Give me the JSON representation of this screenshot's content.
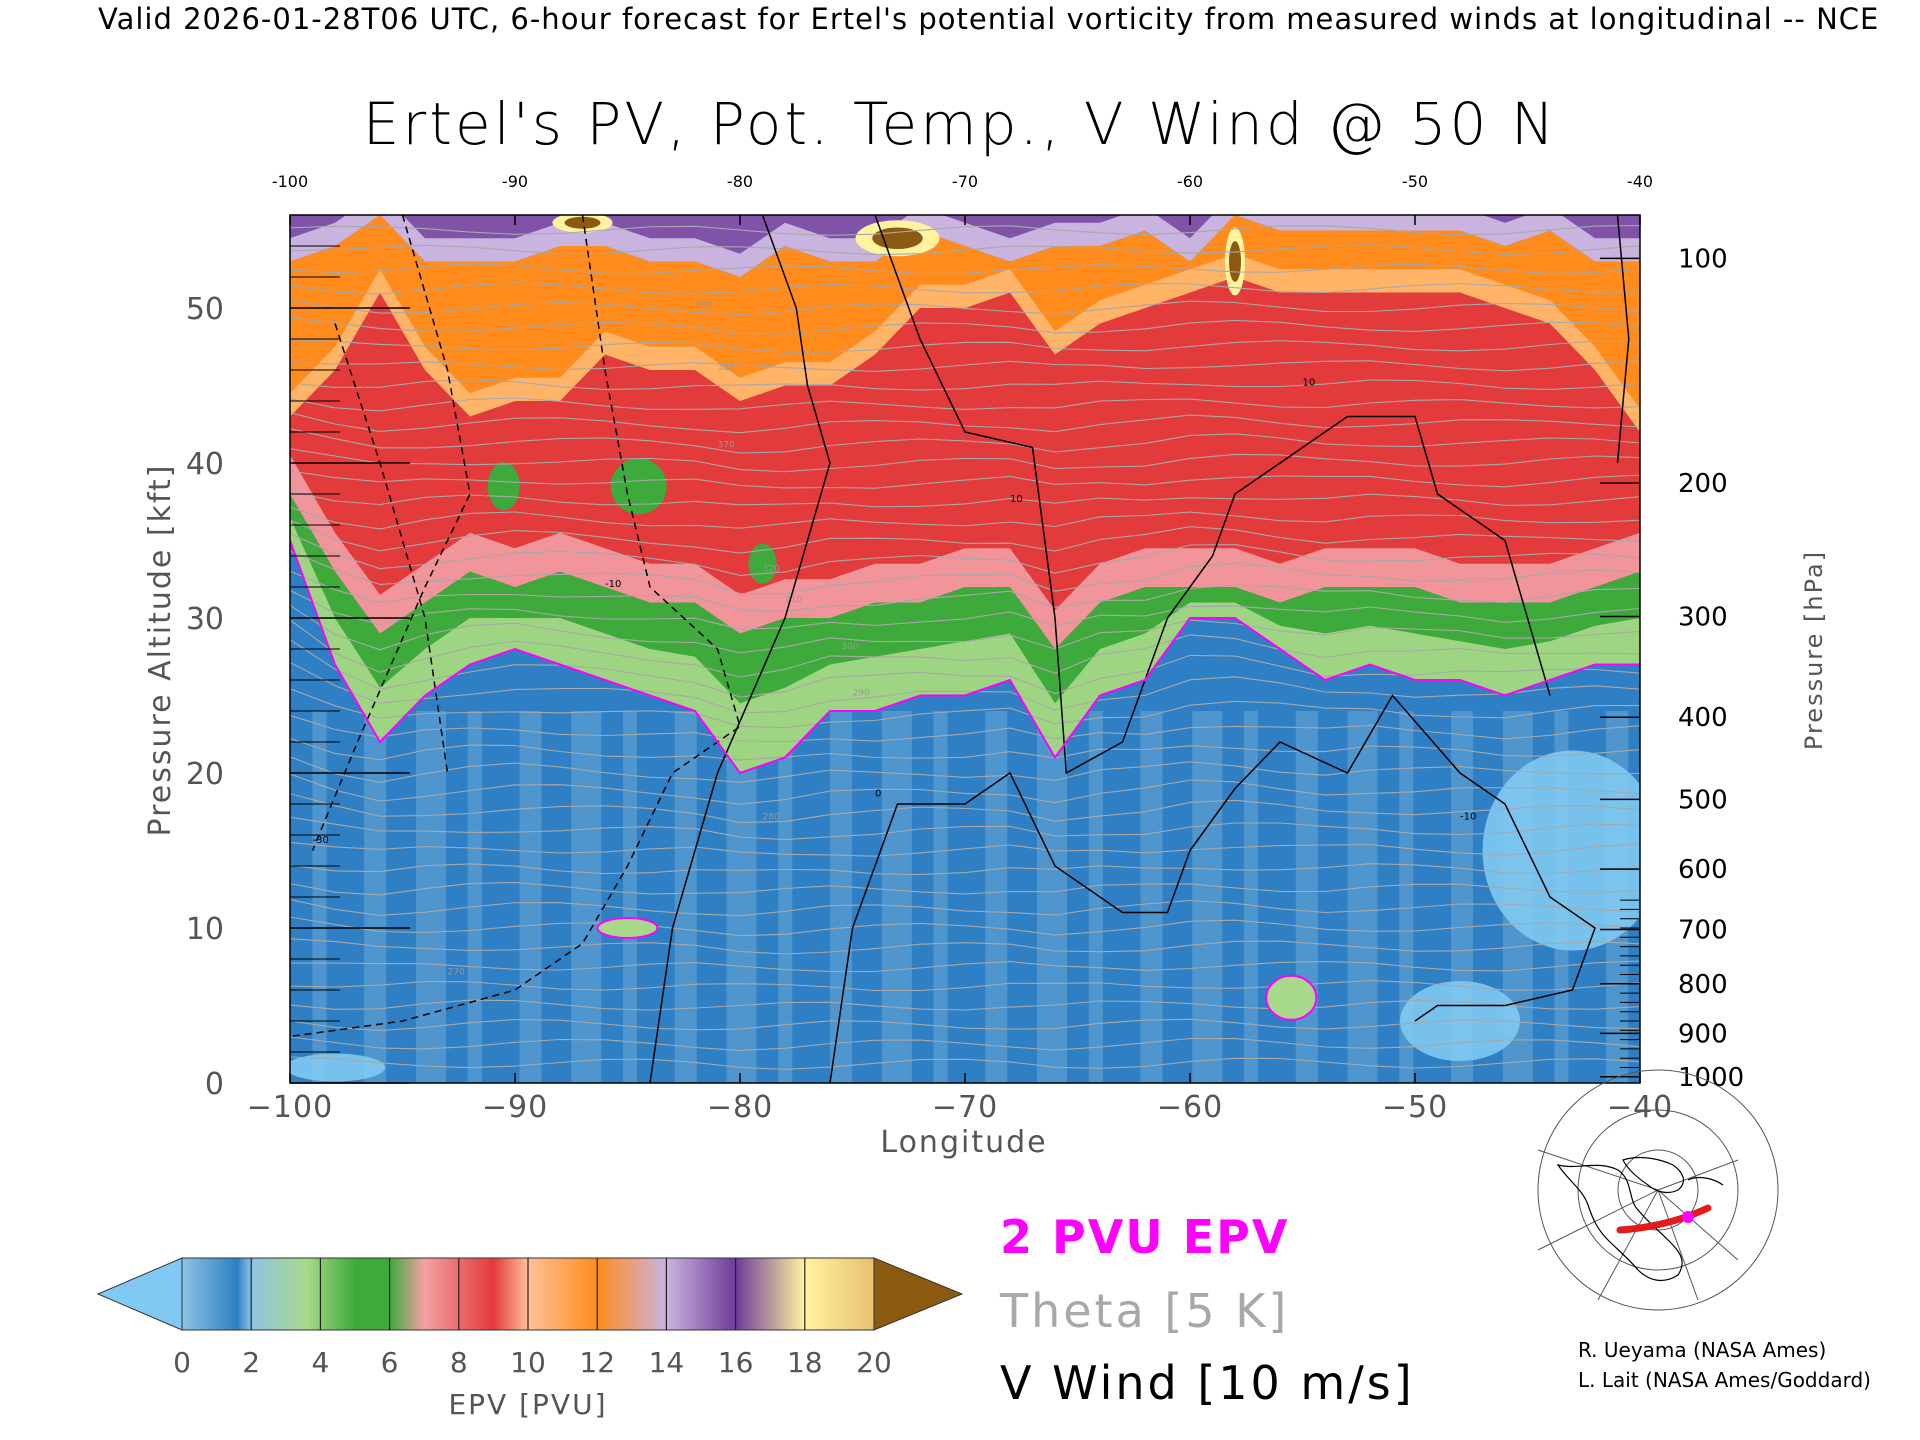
{
  "header": "Valid 2026-01-28T06 UTC, 6-hour forecast for Ertel's potential vorticity from measured winds at longitudinal -- NCE",
  "chart_data": {
    "type": "heatmap",
    "title": "Ertel's PV, Pot. Temp., V Wind @ 50 N",
    "xlabel": "Longitude",
    "ylabel_left": "Pressure Altitude [kft]",
    "ylabel_right": "Pressure [hPa]",
    "xlim": [
      -100,
      -40
    ],
    "ylim": [
      0,
      56
    ],
    "x_ticks_bottom": [
      "−100",
      "−90",
      "−80",
      "−70",
      "−60",
      "−50",
      "−40"
    ],
    "x_ticks_top": [
      "-100",
      "-90",
      "-80",
      "-70",
      "-60",
      "-50",
      "-40"
    ],
    "y_ticks_left": [
      "0",
      "10",
      "20",
      "30",
      "40",
      "50"
    ],
    "y_ticks_right": [
      {
        "label": "100",
        "kft": 53.2
      },
      {
        "label": "200",
        "kft": 38.7
      },
      {
        "label": "300",
        "kft": 30.1
      },
      {
        "label": "400",
        "kft": 23.6
      },
      {
        "label": "500",
        "kft": 18.3
      },
      {
        "label": "600",
        "kft": 13.8
      },
      {
        "label": "700",
        "kft": 9.9
      },
      {
        "label": "800",
        "kft": 6.4
      },
      {
        "label": "900",
        "kft": 3.2
      },
      {
        "label": "1000",
        "kft": 0.4
      }
    ],
    "pv_boundaries": {
      "x": [
        -100,
        -98,
        -96,
        -94,
        -92,
        -90,
        -88,
        -86,
        -84,
        -82,
        -80,
        -78,
        -76,
        -74,
        -72,
        -70,
        -68,
        -66,
        -64,
        -62,
        -60,
        -58,
        -56,
        -54,
        -52,
        -50,
        -48,
        -46,
        -44,
        -42,
        -40
      ],
      "pv2_kft": [
        35,
        27,
        22,
        25,
        27,
        28,
        27,
        26,
        25,
        24,
        20,
        21,
        24,
        24,
        25,
        25,
        26,
        21,
        25,
        26,
        30,
        30,
        28,
        26,
        27,
        26,
        26,
        25,
        26,
        27,
        27
      ],
      "pv6_kft": [
        38,
        33,
        29,
        31,
        33,
        32,
        33,
        32,
        31,
        31,
        29,
        30,
        30,
        31,
        31,
        32,
        32,
        28,
        31,
        32,
        32,
        32,
        31,
        32,
        32,
        32,
        31,
        31,
        31,
        32,
        33
      ],
      "pv10_kft": [
        43,
        46,
        51,
        46,
        43,
        44,
        44,
        47,
        46,
        46,
        44,
        45,
        45,
        47,
        50,
        50,
        51,
        47,
        49,
        50,
        51,
        52,
        51,
        51,
        51,
        51,
        51,
        50,
        49,
        46,
        42
      ],
      "pv14_kft": [
        53,
        54,
        56,
        53,
        53,
        53,
        54,
        54,
        53,
        53,
        52,
        54,
        53,
        53,
        55,
        54,
        53,
        54,
        54,
        55,
        53,
        56,
        55,
        55,
        55,
        55,
        55,
        54,
        55,
        53,
        53
      ]
    },
    "theta_label_values": [
      "300",
      "310",
      "320",
      "370",
      "380",
      "390",
      "290",
      "280",
      "270"
    ],
    "wind_label_values": [
      "10",
      "-10",
      "0",
      "-30",
      "-10",
      "10"
    ],
    "colorbar": {
      "label": "EPV [PVU]",
      "ticks": [
        "0",
        "2",
        "4",
        "6",
        "8",
        "10",
        "12",
        "14",
        "16",
        "18",
        "20"
      ],
      "min": 0,
      "max": 20
    },
    "legend": {
      "pvu": "2 PVU EPV",
      "theta": "Theta [5 K]",
      "wind": "V Wind [10 m/s]"
    },
    "colors": {
      "under": "#7fc9f2",
      "blue_dark": "#2e7fc4",
      "blue_light": "#8fc3e3",
      "green_light": "#a8d98a",
      "green": "#3faa3c",
      "pink": "#f3a0a4",
      "red": "#e33a3c",
      "orange_light": "#ffb870",
      "orange": "#ff8c1c",
      "lavender": "#c9b4e0",
      "purple": "#6e3b9a",
      "yellow": "#fff3a0",
      "over": "#8b5a10",
      "pv2_contour": "#ff00ff",
      "theta_contour": "#a8a8a8",
      "wind_contour": "#000000"
    }
  },
  "credits": {
    "line1": "R. Ueyama (NASA Ames)",
    "line2": "L. Lait (NASA Ames/Goddard)"
  }
}
